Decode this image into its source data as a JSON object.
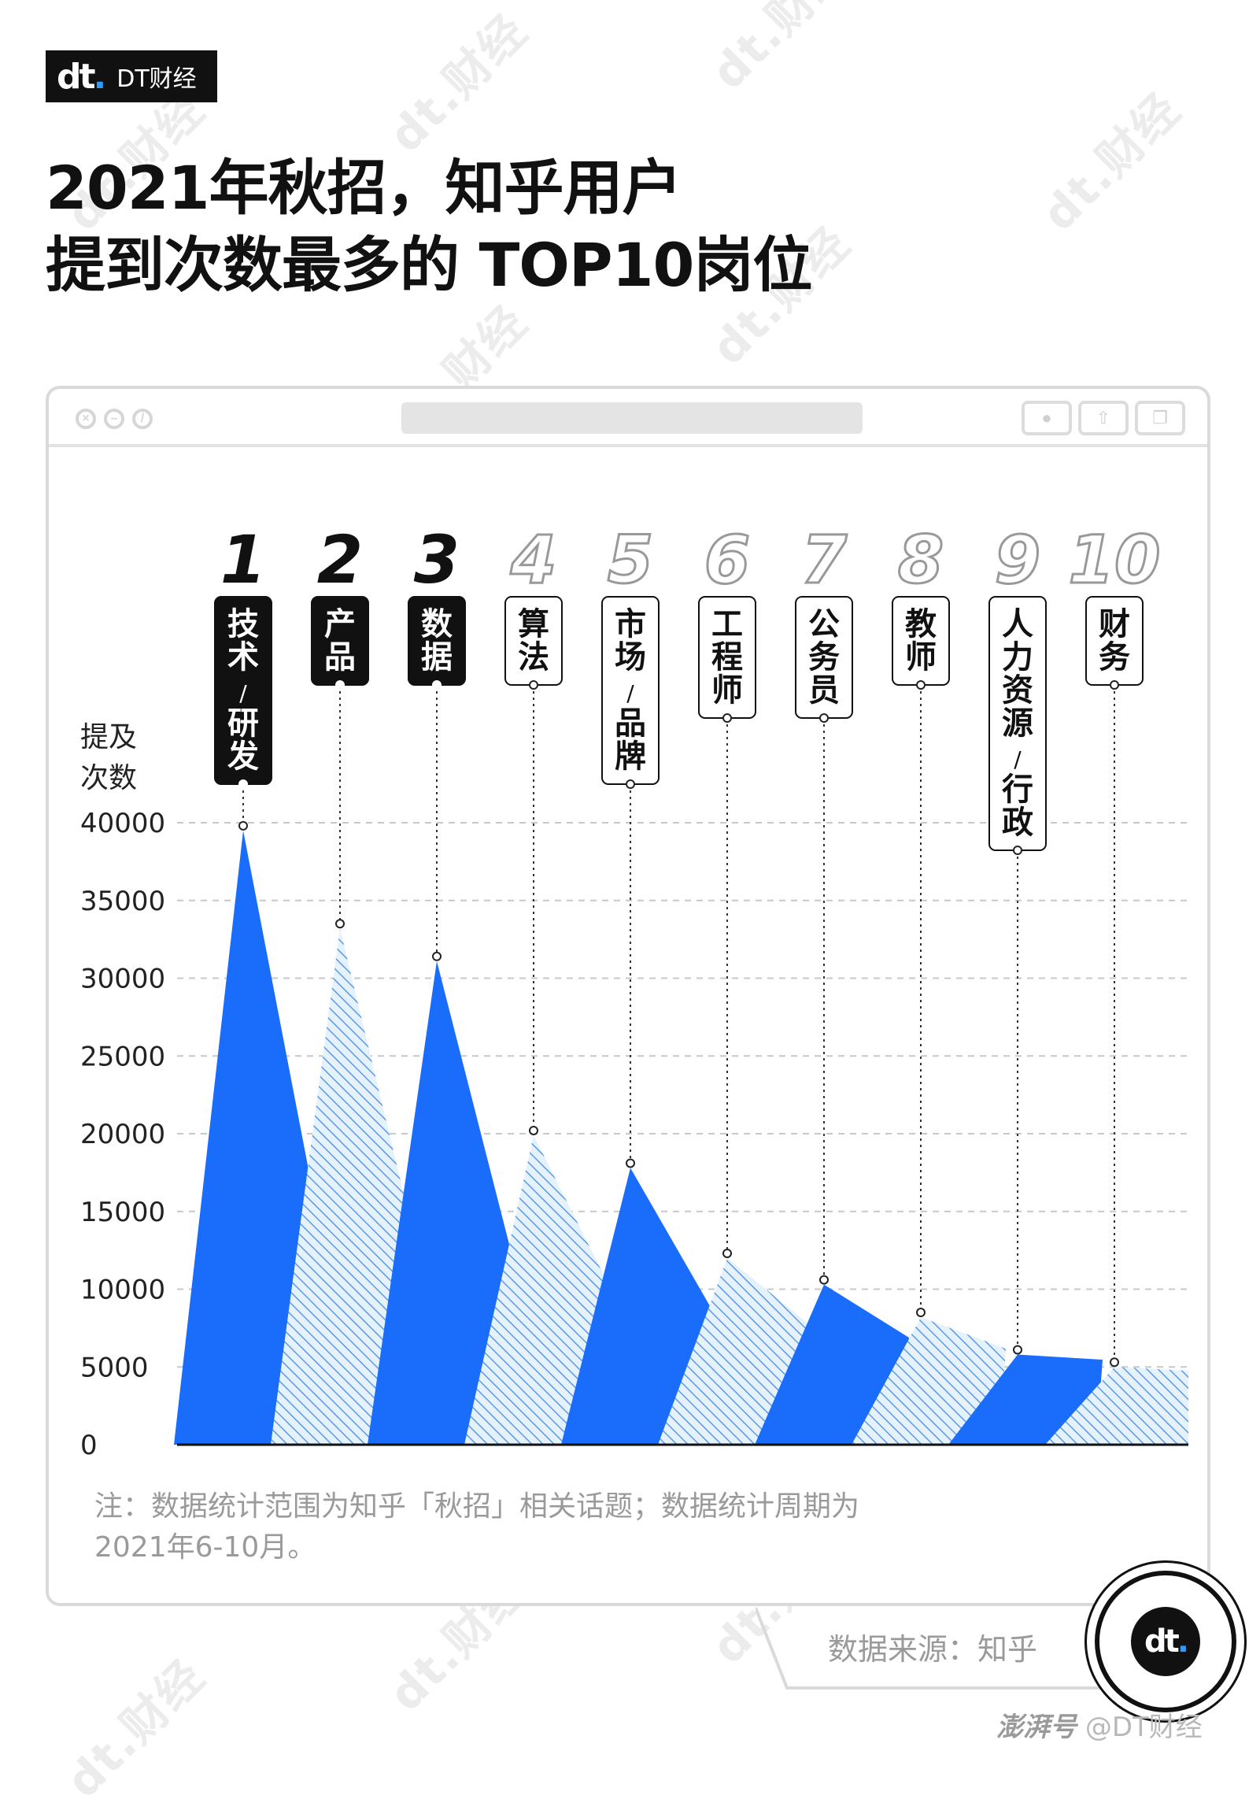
{
  "brand": {
    "logo_mark": "dt",
    "name": "DT财经"
  },
  "title_lines": [
    "2021年秋招，知乎用户",
    "提到次数最多的 TOP10岗位"
  ],
  "watermark_text": "dt.财经",
  "chart_data": {
    "type": "area",
    "y_axis_label": [
      "提及",
      "次数"
    ],
    "ylim": [
      0,
      40000
    ],
    "y_ticks": [
      "40000",
      "35000",
      "30000",
      "25000",
      "20000",
      "15000",
      "10000",
      "5000",
      "0"
    ],
    "grid": "dashed horizontal",
    "categories": [
      {
        "rank": "1",
        "lines": [
          "技",
          "术",
          "/",
          "研",
          "发"
        ],
        "value": 39500,
        "top3": true,
        "fill": "solid"
      },
      {
        "rank": "2",
        "lines": [
          "产",
          "品"
        ],
        "value": 33200,
        "top3": true,
        "fill": "hatched"
      },
      {
        "rank": "3",
        "lines": [
          "数",
          "据"
        ],
        "value": 31100,
        "top3": true,
        "fill": "solid"
      },
      {
        "rank": "4",
        "lines": [
          "算",
          "法"
        ],
        "value": 19900,
        "top3": false,
        "fill": "hatched"
      },
      {
        "rank": "5",
        "lines": [
          "市",
          "场",
          "/",
          "品",
          "牌"
        ],
        "value": 17800,
        "top3": false,
        "fill": "solid"
      },
      {
        "rank": "6",
        "lines": [
          "工",
          "程",
          "师"
        ],
        "value": 12000,
        "top3": false,
        "fill": "hatched"
      },
      {
        "rank": "7",
        "lines": [
          "公",
          "务",
          "员"
        ],
        "value": 10300,
        "top3": false,
        "fill": "solid"
      },
      {
        "rank": "8",
        "lines": [
          "教",
          "师"
        ],
        "value": 8200,
        "top3": false,
        "fill": "hatched"
      },
      {
        "rank": "9",
        "lines": [
          "人",
          "力",
          "资",
          "源",
          "/",
          "行",
          "政"
        ],
        "value": 5800,
        "top3": false,
        "fill": "solid"
      },
      {
        "rank": "10",
        "lines": [
          "财",
          "务"
        ],
        "value": 5000,
        "top3": false,
        "fill": "hatched"
      }
    ],
    "colors": {
      "solid": "#1a6cfb",
      "hatch_line": "#5a9ae8",
      "hatch_bg": "#e6f2fb",
      "grid": "#c8c8c8"
    }
  },
  "note_lines": [
    "注：数据统计范围为知乎「秋招」相关话题；数据统计周期为",
    "2021年6-10月。"
  ],
  "source": "数据来源：知乎",
  "credit": {
    "platform": "澎湃号",
    "handle": "@DT财经"
  }
}
